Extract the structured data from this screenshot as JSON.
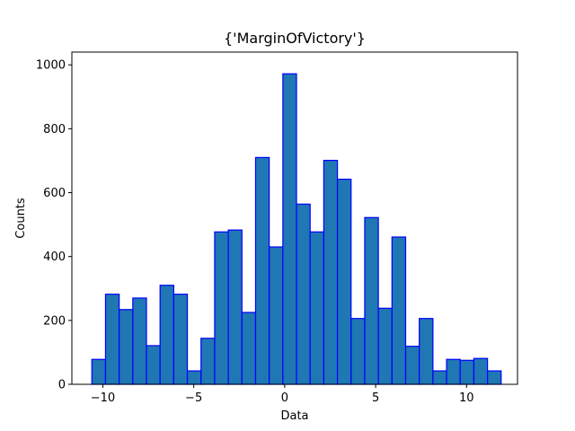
{
  "chart_data": {
    "type": "bar",
    "title": "{'MarginOfVictory'}",
    "xlabel": "Data",
    "ylabel": "Counts",
    "xlim": [
      -11.7,
      12.8
    ],
    "ylim": [
      0,
      1040
    ],
    "bin_edges": [
      -10.6,
      -9.85,
      -9.1,
      -8.35,
      -7.6,
      -6.85,
      -6.1,
      -5.35,
      -4.6,
      -3.85,
      -3.1,
      -2.35,
      -1.6,
      -0.85,
      -0.1,
      0.65,
      1.4,
      2.15,
      2.9,
      3.65,
      4.4,
      5.15,
      5.9,
      6.65,
      7.4,
      8.15,
      8.9,
      9.65,
      10.4,
      11.15,
      11.9
    ],
    "values": [
      78,
      282,
      234,
      270,
      121,
      310,
      282,
      42,
      144,
      477,
      483,
      225,
      710,
      430,
      972,
      564,
      477,
      701,
      642,
      206,
      522,
      238,
      461,
      119,
      206,
      42,
      78,
      75,
      81,
      42
    ],
    "x_ticks": [
      -10,
      -5,
      0,
      5,
      10
    ],
    "x_tick_labels": [
      "−10",
      "−5",
      "0",
      "5",
      "10"
    ],
    "y_ticks": [
      0,
      200,
      400,
      600,
      800,
      1000
    ],
    "y_tick_labels": [
      "0",
      "200",
      "400",
      "600",
      "800",
      "1000"
    ],
    "grid": false,
    "bar_fill": "#1f77b4",
    "bar_edge": "#0000ff"
  }
}
